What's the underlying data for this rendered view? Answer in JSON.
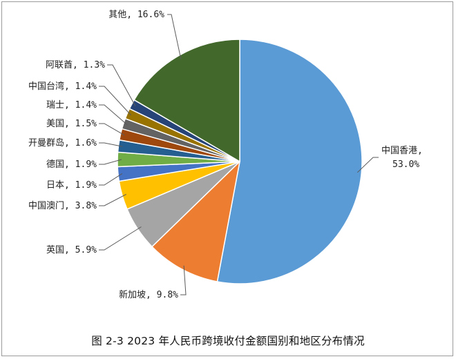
{
  "caption": "图 2-3 2023 年人民币跨境收付金额国别和地区分布情况",
  "chart_data": {
    "type": "pie",
    "title": "",
    "unit": "%",
    "slices": [
      {
        "label": "中国香港",
        "value": 53.0,
        "display": "53.0%",
        "color": "#5b9bd5"
      },
      {
        "label": "新加坡",
        "value": 9.8,
        "display": "9.8%",
        "color": "#ed7d31"
      },
      {
        "label": "英国",
        "value": 5.9,
        "display": "5.9%",
        "color": "#a5a5a5"
      },
      {
        "label": "中国澳门",
        "value": 3.8,
        "display": "3.8%",
        "color": "#ffc000"
      },
      {
        "label": "日本",
        "value": 1.9,
        "display": "1.9%",
        "color": "#4472c4"
      },
      {
        "label": "德国",
        "value": 1.9,
        "display": "1.9%",
        "color": "#70ad47"
      },
      {
        "label": "开曼群岛",
        "value": 1.6,
        "display": "1.6%",
        "color": "#255e91"
      },
      {
        "label": "美国",
        "value": 1.5,
        "display": "1.5%",
        "color": "#9e480e"
      },
      {
        "label": "瑞士",
        "value": 1.4,
        "display": "1.4%",
        "color": "#636363"
      },
      {
        "label": "中国台湾",
        "value": 1.4,
        "display": "1.4%",
        "color": "#997300"
      },
      {
        "label": "阿联酋",
        "value": 1.3,
        "display": "1.3%",
        "color": "#264478"
      },
      {
        "label": "其他",
        "value": 16.6,
        "display": "16.6%",
        "color": "#43682b"
      }
    ]
  }
}
